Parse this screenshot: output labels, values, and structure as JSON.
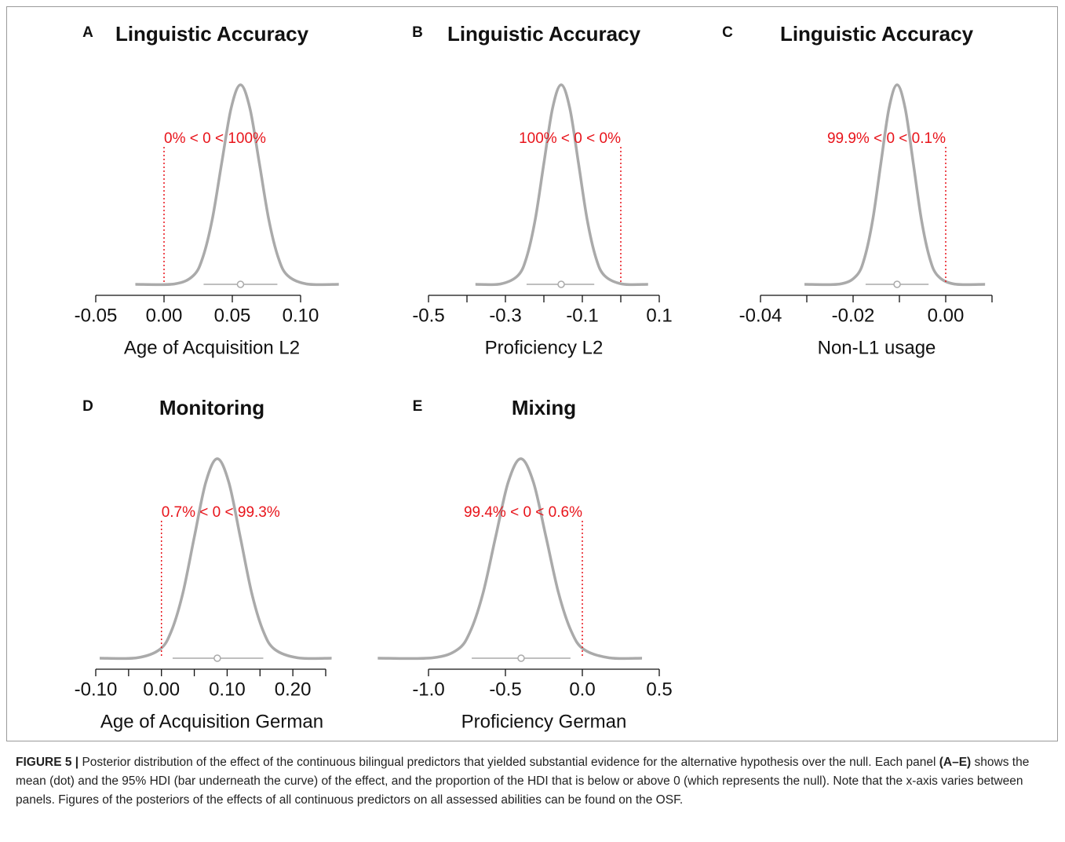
{
  "chart_data": [
    {
      "type": "density",
      "panel_label": "A",
      "title": "Linguistic Accuracy",
      "xlabel": "Age of Acquisition L2",
      "x": [
        -0.021,
        0.0077,
        0.0215,
        0.0284,
        0.0353,
        0.0422,
        0.0491,
        0.056,
        0.0629,
        0.0698,
        0.0767,
        0.0836,
        0.0905,
        0.1043,
        0.128
      ],
      "values": [
        0,
        0.002,
        0.044,
        0.135,
        0.325,
        0.607,
        0.882,
        1,
        0.882,
        0.607,
        0.325,
        0.135,
        0.044,
        0.002,
        0
      ],
      "color": "#aaaaaa",
      "xlim": [
        -0.05,
        0.1
      ],
      "ylim": [
        0,
        1.05
      ],
      "xticks": [
        -0.05,
        {
          "value": 0,
          "label": "0.00"
        },
        0.05,
        {
          "value": 0.1,
          "label": "0.10"
        }
      ],
      "mean": 0.056,
      "hdi": [
        0.029,
        0.083
      ],
      "reference_line": 0,
      "reference_color": "#e8141b",
      "annotation": "0% < 0 < 100%"
    },
    {
      "type": "density",
      "panel_label": "B",
      "title": "Linguistic Accuracy",
      "xlabel": "Proficiency L2",
      "x": [
        -0.378,
        -0.3125,
        -0.2675,
        -0.245,
        -0.2225,
        -0.2,
        -0.1775,
        -0.155,
        -0.1325,
        -0.11,
        -0.0875,
        -0.065,
        -0.0425,
        0.0025,
        0.071
      ],
      "values": [
        0,
        0.002,
        0.044,
        0.135,
        0.325,
        0.607,
        0.882,
        1,
        0.882,
        0.607,
        0.325,
        0.135,
        0.044,
        0.002,
        0
      ],
      "color": "#aaaaaa",
      "xlim": [
        -0.5,
        0.1
      ],
      "ylim": [
        0,
        1.05
      ],
      "xticks": [
        -0.5,
        -0.3,
        -0.1,
        0.1
      ],
      "xminorticks": [
        -0.4,
        -0.2,
        0
      ],
      "mean": -0.155,
      "hdi": [
        -0.245,
        -0.069
      ],
      "reference_line": 0,
      "reference_color": "#e8141b",
      "annotation": "100% < 0 < 0%"
    },
    {
      "type": "density",
      "panel_label": "C",
      "title": "Linguistic Accuracy",
      "xlabel": "Non-L1 usage",
      "x": [
        -0.0305,
        -0.02275,
        -0.01925,
        -0.0175,
        -0.01575,
        -0.014,
        -0.01225,
        -0.0105,
        -0.00875,
        -0.007,
        -0.00525,
        -0.0035,
        -0.00175,
        0.00175,
        0.0085
      ],
      "values": [
        0,
        0.002,
        0.044,
        0.135,
        0.325,
        0.607,
        0.882,
        1,
        0.882,
        0.607,
        0.325,
        0.135,
        0.044,
        0.002,
        0
      ],
      "color": "#aaaaaa",
      "xlim": [
        -0.04,
        0.01
      ],
      "ylim": [
        0,
        1.05
      ],
      "xticks": [
        -0.04,
        -0.02,
        {
          "value": 0,
          "label": "0.00"
        }
      ],
      "xminorticks": [
        -0.03,
        -0.01,
        0.01
      ],
      "mean": -0.0105,
      "hdi": [
        -0.0173,
        -0.0037
      ],
      "reference_line": 0,
      "reference_color": "#e8141b",
      "annotation": "99.9% < 0 < 0.1%"
    },
    {
      "type": "density",
      "panel_label": "D",
      "title": "Monitoring",
      "xlabel": "Age of Acquisition German",
      "x": [
        -0.094,
        -0.0375,
        -0.0025,
        0.015,
        0.0325,
        0.05,
        0.0675,
        0.085,
        0.1025,
        0.12,
        0.1375,
        0.155,
        0.1725,
        0.2075,
        0.259
      ],
      "values": [
        0,
        0.002,
        0.044,
        0.135,
        0.325,
        0.607,
        0.882,
        1,
        0.882,
        0.607,
        0.325,
        0.135,
        0.044,
        0.002,
        0
      ],
      "color": "#aaaaaa",
      "xlim": [
        -0.1,
        0.25
      ],
      "ylim": [
        0,
        1.05
      ],
      "xticks": [
        {
          "value": -0.1,
          "label": "-0.10"
        },
        {
          "value": 0,
          "label": "0.00"
        },
        {
          "value": 0.1,
          "label": "0.10"
        },
        {
          "value": 0.2,
          "label": "0.20"
        }
      ],
      "xminorticks": [
        -0.05,
        0.05,
        0.15,
        0.25
      ],
      "mean": 0.085,
      "hdi": [
        0.017,
        0.155
      ],
      "reference_line": 0,
      "reference_color": "#e8141b",
      "annotation": "0.7% < 0 < 99.3%"
    },
    {
      "type": "density",
      "panel_label": "E",
      "title": "Mixing",
      "xlabel": "Proficiency German",
      "x": [
        -1.33,
        -0.974,
        -0.81,
        -0.728,
        -0.646,
        -0.564,
        -0.482,
        -0.4,
        -0.318,
        -0.236,
        -0.154,
        -0.072,
        0.01,
        0.174,
        0.388
      ],
      "values": [
        0,
        0.002,
        0.044,
        0.135,
        0.325,
        0.607,
        0.882,
        1,
        0.882,
        0.607,
        0.325,
        0.135,
        0.044,
        0.002,
        0
      ],
      "color": "#aaaaaa",
      "xlim": [
        -1,
        0.5
      ],
      "ylim": [
        0,
        1.05
      ],
      "xticks": [
        {
          "value": -1,
          "label": "-1.0"
        },
        -0.5,
        {
          "value": 0,
          "label": "0.0"
        },
        0.5
      ],
      "mean": -0.398,
      "hdi": [
        -0.719,
        -0.077
      ],
      "reference_line": 0,
      "reference_color": "#e8141b",
      "annotation": "99.4% < 0 < 0.6%"
    }
  ],
  "caption": {
    "label": "FIGURE 5 |",
    "text1": "Posterior distribution of the effect of the continuous bilingual predictors that yielded substantial evidence for the alternative hypothesis over the null. Each panel",
    "bold": "(A–E)",
    "text2": "shows the mean (dot) and the 95% HDI (bar underneath the curve) of the effect, and the proportion of the HDI that is below or above 0 (which represents the null). Note that the x-axis varies between panels. Figures of the posteriors of the effects of all continuous predictors on all assessed abilities can be found on the OSF."
  }
}
